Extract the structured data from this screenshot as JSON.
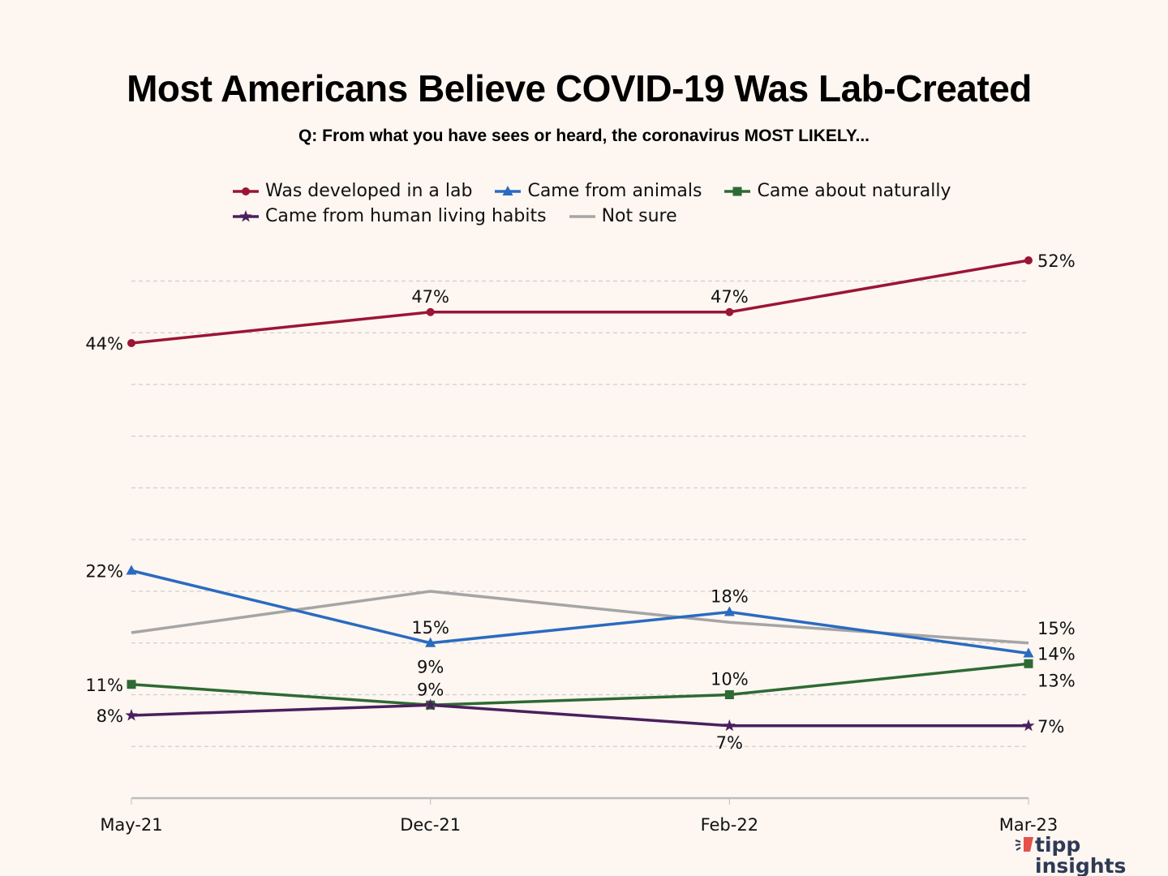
{
  "chart_data": {
    "type": "line",
    "title": "Most Americans Believe COVID-19 Was Lab-Created",
    "subtitle": "Q: From what you have sees or heard, the coronavirus MOST LIKELY...",
    "xlabel": "",
    "ylabel": "",
    "categories": [
      "May-21",
      "Dec-21",
      "Feb-22",
      "Mar-23"
    ],
    "ylim": [
      0,
      55
    ],
    "grid": true,
    "grid_step": 5,
    "legend_position": "top-center",
    "series": [
      {
        "name": "Was developed in a lab",
        "color": "#9b1535",
        "marker": "circle",
        "values": [
          44,
          47,
          47,
          52
        ],
        "labels": [
          "44%",
          "47%",
          "47%",
          "52%"
        ],
        "label_pos": [
          "left",
          "above",
          "above",
          "right"
        ]
      },
      {
        "name": "Came from animals",
        "color": "#2a6bbf",
        "marker": "triangle",
        "values": [
          22,
          15,
          18,
          14
        ],
        "labels": [
          "22%",
          "15%",
          "18%",
          "14%"
        ],
        "label_pos": [
          "left",
          "above",
          "above",
          "right"
        ]
      },
      {
        "name": "Came about naturally",
        "color": "#2e6a33",
        "marker": "square",
        "values": [
          11,
          9,
          10,
          13
        ],
        "labels": [
          "11%",
          "9%",
          "10%",
          "13%"
        ],
        "label_pos": [
          "left",
          "above-far",
          "above",
          "right-below"
        ]
      },
      {
        "name": "Came from human living habits",
        "color": "#4a1f5e",
        "marker": "star",
        "values": [
          8,
          9,
          7,
          7
        ],
        "labels": [
          "8%",
          "9%",
          "7%",
          "7%"
        ],
        "label_pos": [
          "left",
          "above",
          "below",
          "right"
        ]
      },
      {
        "name": "Not sure",
        "color": "#a5a5a5",
        "marker": "none",
        "values": [
          16,
          20,
          17,
          15
        ],
        "labels": [
          "",
          "",
          "",
          "15%"
        ],
        "label_pos": [
          "",
          "",
          "",
          "right-above"
        ]
      }
    ]
  },
  "logo": {
    "line1": "tipp",
    "line2": "insights",
    "accent": "#e8504a"
  }
}
